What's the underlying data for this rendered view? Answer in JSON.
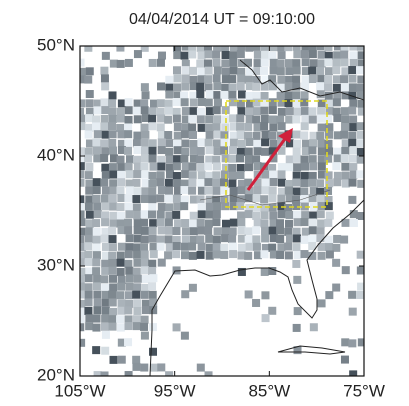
{
  "chart_data": {
    "type": "map",
    "title": "04/04/2014  UT = 09:10:00",
    "xlim": [
      -105,
      -75
    ],
    "ylim": [
      20,
      50
    ],
    "xticks": [
      {
        "value": -105,
        "label": "105°W"
      },
      {
        "value": -95,
        "label": "95°W"
      },
      {
        "value": -85,
        "label": "85°W"
      },
      {
        "value": -75,
        "label": "75°W"
      }
    ],
    "yticks": [
      {
        "value": 20,
        "label": "20°N"
      },
      {
        "value": 30,
        "label": "30°N"
      },
      {
        "value": 40,
        "label": "40°N"
      },
      {
        "value": 50,
        "label": "50°N"
      }
    ]
  }
}
